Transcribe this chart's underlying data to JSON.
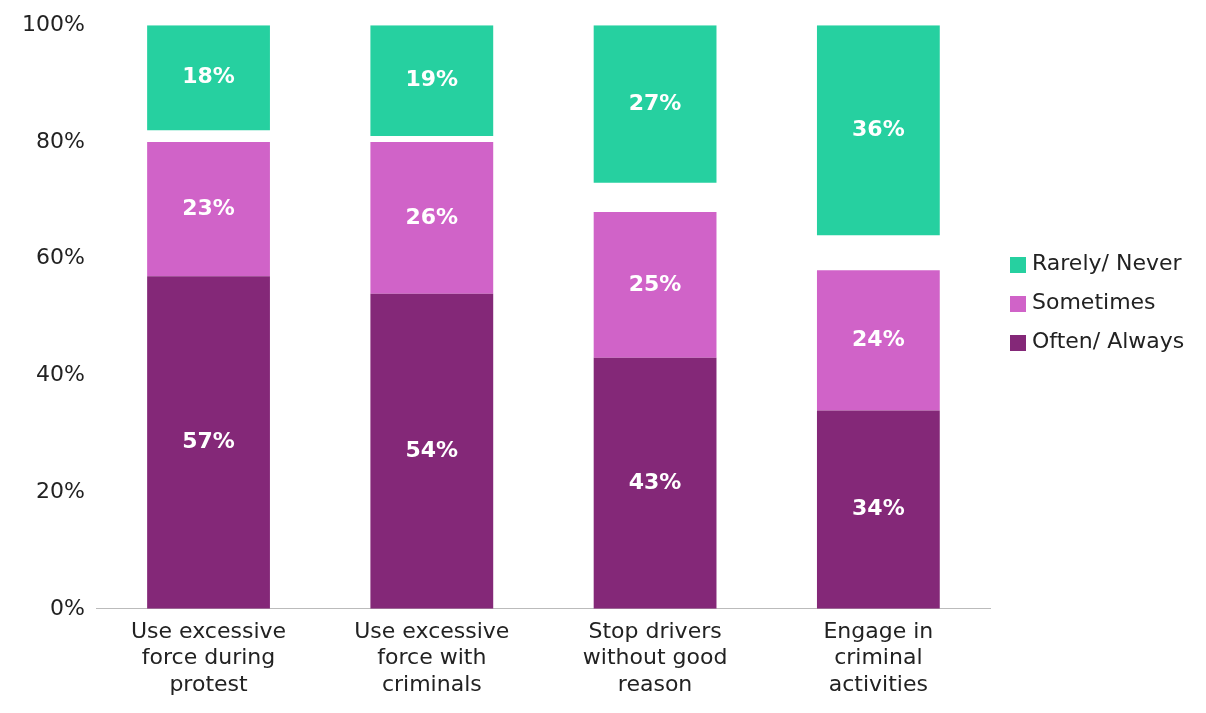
{
  "chart_data": {
    "type": "bar",
    "categories": [
      "Use excessive force during protest",
      "Use excessive force with criminals",
      "Stop drivers without good reason",
      "Engage in criminal activities"
    ],
    "series": [
      {
        "name": "Often/ Always",
        "color": "#842878",
        "values": [
          57,
          54,
          43,
          34
        ],
        "base": [
          0,
          0,
          0,
          0
        ],
        "value_labels": [
          "57%",
          "54%",
          "43%",
          "34%"
        ]
      },
      {
        "name": "Sometimes",
        "color": "#d063c8",
        "values": [
          23,
          26,
          25,
          24
        ],
        "base": [
          57,
          54,
          43,
          34
        ],
        "value_labels": [
          "23%",
          "26%",
          "25%",
          "24%"
        ]
      },
      {
        "name": "Rarely/ Never",
        "color": "#26d0a0",
        "values": [
          18,
          19,
          27,
          36
        ],
        "base": [
          82,
          81,
          73,
          64
        ],
        "value_labels": [
          "18%",
          "19%",
          "27%",
          "36%"
        ]
      }
    ],
    "ylim": [
      0,
      100
    ],
    "yticks": [
      {
        "value": 0,
        "label": "0%"
      },
      {
        "value": 20,
        "label": "20%"
      },
      {
        "value": 40,
        "label": "40%"
      },
      {
        "value": 60,
        "label": "60%"
      },
      {
        "value": 80,
        "label": "80%"
      },
      {
        "value": 100,
        "label": "100%"
      }
    ],
    "grid": false,
    "legend": "right"
  }
}
